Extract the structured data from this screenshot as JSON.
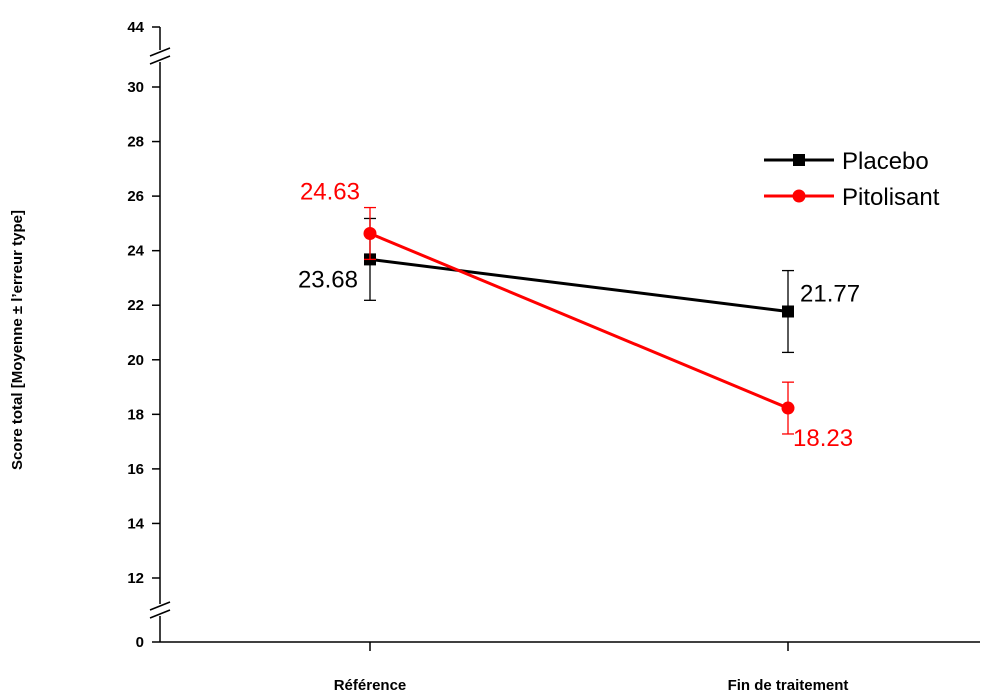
{
  "chart_data": {
    "type": "line",
    "categories": [
      "Référence",
      "Fin de traitement"
    ],
    "ylabel": "Score total [Moyenne ± l’erreur type]",
    "xlabel": "",
    "yticks": [
      "0",
      "12",
      "14",
      "16",
      "18",
      "20",
      "22",
      "24",
      "26",
      "28",
      "30",
      "44"
    ],
    "ylim": [
      0,
      44
    ],
    "axis_break": true,
    "legend_position": "top-right",
    "series": [
      {
        "name": "Placebo",
        "color": "#000000",
        "marker": "square",
        "values": [
          23.68,
          21.77
        ],
        "error": [
          1.5,
          1.5
        ],
        "labels": [
          "23.68",
          "21.77"
        ]
      },
      {
        "name": "Pitolisant",
        "color": "#ff0000",
        "marker": "circle",
        "values": [
          24.63,
          18.23
        ],
        "error": [
          0.95,
          0.95
        ],
        "labels": [
          "24.63",
          "18.23"
        ]
      }
    ]
  }
}
